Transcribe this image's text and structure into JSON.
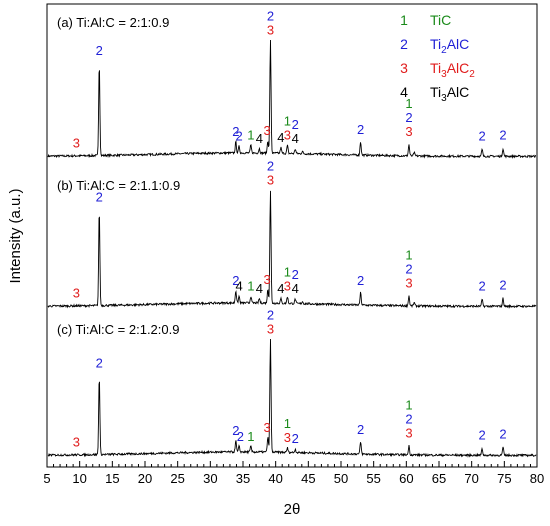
{
  "chart_data": {
    "type": "line",
    "xlabel": "2θ",
    "ylabel": "Intensity (a.u.)",
    "xlim": [
      5,
      80
    ],
    "x_ticks": [
      "5",
      "10",
      "15",
      "20",
      "25",
      "30",
      "35",
      "40",
      "45",
      "50",
      "55",
      "60",
      "65",
      "70",
      "75",
      "80"
    ],
    "colors": {
      "1": "#1a8a1a",
      "2": "#1f1fd6",
      "3": "#e01c1c",
      "4": "#000000"
    },
    "legend": [
      {
        "key": "1",
        "label": "TiC",
        "color": "#1a8a1a"
      },
      {
        "key": "2",
        "label": "Ti",
        "sub": "2",
        "rest": "AlC",
        "color": "#1f1fd6"
      },
      {
        "key": "3",
        "label": "Ti",
        "sub": "3",
        "rest": "AlC",
        "sub2": "2",
        "color": "#e01c1c"
      },
      {
        "key": "4",
        "label": "Ti",
        "sub": "3",
        "rest": "AlC",
        "color": "#000000"
      }
    ],
    "series": [
      {
        "label": "(a) Ti:Al:C = 2:1:0.9",
        "peaks": [
          {
            "x": 13.0,
            "h": 0.82
          },
          {
            "x": 33.9,
            "h": 0.1
          },
          {
            "x": 34.4,
            "h": 0.06
          },
          {
            "x": 36.2,
            "h": 0.07
          },
          {
            "x": 37.5,
            "h": 0.04
          },
          {
            "x": 38.8,
            "h": 0.11
          },
          {
            "x": 39.2,
            "h": 1.0
          },
          {
            "x": 40.8,
            "h": 0.05
          },
          {
            "x": 41.8,
            "h": 0.07
          },
          {
            "x": 43.0,
            "h": 0.04
          },
          {
            "x": 44.1,
            "h": 0.02
          },
          {
            "x": 53.0,
            "h": 0.12
          },
          {
            "x": 60.4,
            "h": 0.1
          },
          {
            "x": 61.2,
            "h": 0.03
          },
          {
            "x": 71.6,
            "h": 0.06
          },
          {
            "x": 74.8,
            "h": 0.07
          }
        ],
        "labels": [
          {
            "x": 9.5,
            "texts": [
              {
                "t": "3",
                "k": "3"
              }
            ]
          },
          {
            "x": 13.0,
            "texts": [
              {
                "t": "2",
                "k": "2"
              }
            ]
          },
          {
            "x": 33.9,
            "texts": [
              {
                "t": "2",
                "k": "2"
              }
            ]
          },
          {
            "x": 34.4,
            "texts": [
              {
                "t": "2",
                "k": "2"
              }
            ]
          },
          {
            "x": 36.2,
            "texts": [
              {
                "t": "1",
                "k": "1"
              }
            ]
          },
          {
            "x": 37.5,
            "texts": [
              {
                "t": "4",
                "k": "4"
              }
            ]
          },
          {
            "x": 38.7,
            "texts": [
              {
                "t": "3",
                "k": "3"
              }
            ]
          },
          {
            "x": 39.2,
            "texts": [
              {
                "t": "2",
                "k": "2"
              },
              {
                "t": "3",
                "k": "3"
              }
            ]
          },
          {
            "x": 40.8,
            "texts": [
              {
                "t": "4",
                "k": "4"
              }
            ]
          },
          {
            "x": 41.8,
            "texts": [
              {
                "t": "1",
                "k": "1"
              },
              {
                "t": "3",
                "k": "3"
              }
            ]
          },
          {
            "x": 43.0,
            "texts": [
              {
                "t": "2",
                "k": "2"
              },
              {
                "t": "4",
                "k": "4"
              }
            ]
          },
          {
            "x": 53.0,
            "texts": [
              {
                "t": "2",
                "k": "2"
              }
            ]
          },
          {
            "x": 60.4,
            "texts": [
              {
                "t": "1",
                "k": "1"
              },
              {
                "t": "2",
                "k": "2"
              },
              {
                "t": "3",
                "k": "3"
              }
            ]
          },
          {
            "x": 71.6,
            "texts": [
              {
                "t": "2",
                "k": "2"
              }
            ]
          },
          {
            "x": 74.8,
            "texts": [
              {
                "t": "2",
                "k": "2"
              }
            ]
          }
        ]
      },
      {
        "label": "(b) Ti:Al:C = 2:1.1:0.9",
        "peaks": [
          {
            "x": 13.0,
            "h": 0.85
          },
          {
            "x": 33.9,
            "h": 0.11
          },
          {
            "x": 34.4,
            "h": 0.06
          },
          {
            "x": 36.2,
            "h": 0.06
          },
          {
            "x": 37.5,
            "h": 0.04
          },
          {
            "x": 38.8,
            "h": 0.12
          },
          {
            "x": 39.2,
            "h": 1.0
          },
          {
            "x": 40.8,
            "h": 0.04
          },
          {
            "x": 41.8,
            "h": 0.06
          },
          {
            "x": 43.0,
            "h": 0.04
          },
          {
            "x": 44.1,
            "h": 0.02
          },
          {
            "x": 53.0,
            "h": 0.11
          },
          {
            "x": 60.4,
            "h": 0.09
          },
          {
            "x": 61.2,
            "h": 0.03
          },
          {
            "x": 71.6,
            "h": 0.06
          },
          {
            "x": 74.8,
            "h": 0.07
          }
        ],
        "labels": [
          {
            "x": 9.5,
            "texts": [
              {
                "t": "3",
                "k": "3"
              }
            ]
          },
          {
            "x": 13.0,
            "texts": [
              {
                "t": "2",
                "k": "2"
              }
            ]
          },
          {
            "x": 33.9,
            "texts": [
              {
                "t": "2",
                "k": "2"
              }
            ]
          },
          {
            "x": 34.4,
            "texts": [
              {
                "t": "4",
                "k": "4"
              }
            ]
          },
          {
            "x": 36.2,
            "texts": [
              {
                "t": "1",
                "k": "1"
              }
            ]
          },
          {
            "x": 37.5,
            "texts": [
              {
                "t": "4",
                "k": "4"
              }
            ]
          },
          {
            "x": 38.7,
            "texts": [
              {
                "t": "3",
                "k": "3"
              }
            ]
          },
          {
            "x": 39.2,
            "texts": [
              {
                "t": "2",
                "k": "2"
              },
              {
                "t": "3",
                "k": "3"
              }
            ]
          },
          {
            "x": 40.8,
            "texts": [
              {
                "t": "4",
                "k": "4"
              }
            ]
          },
          {
            "x": 41.8,
            "texts": [
              {
                "t": "1",
                "k": "1"
              },
              {
                "t": "3",
                "k": "3"
              }
            ]
          },
          {
            "x": 43.0,
            "texts": [
              {
                "t": "2",
                "k": "2"
              },
              {
                "t": "4",
                "k": "4"
              }
            ]
          },
          {
            "x": 53.0,
            "texts": [
              {
                "t": "2",
                "k": "2"
              }
            ]
          },
          {
            "x": 60.4,
            "texts": [
              {
                "t": "1",
                "k": "1"
              },
              {
                "t": "2",
                "k": "2"
              },
              {
                "t": "3",
                "k": "3"
              }
            ]
          },
          {
            "x": 71.6,
            "texts": [
              {
                "t": "2",
                "k": "2"
              }
            ]
          },
          {
            "x": 74.8,
            "texts": [
              {
                "t": "2",
                "k": "2"
              }
            ]
          }
        ]
      },
      {
        "label": "(c) Ti:Al:C = 2:1.2:0.9",
        "peaks": [
          {
            "x": 13.0,
            "h": 0.7
          },
          {
            "x": 33.9,
            "h": 0.1
          },
          {
            "x": 34.4,
            "h": 0.05
          },
          {
            "x": 36.2,
            "h": 0.05
          },
          {
            "x": 38.8,
            "h": 0.13
          },
          {
            "x": 39.2,
            "h": 1.0
          },
          {
            "x": 41.8,
            "h": 0.04
          },
          {
            "x": 43.0,
            "h": 0.03
          },
          {
            "x": 53.0,
            "h": 0.11
          },
          {
            "x": 60.4,
            "h": 0.08
          },
          {
            "x": 71.6,
            "h": 0.06
          },
          {
            "x": 74.8,
            "h": 0.07
          }
        ],
        "labels": [
          {
            "x": 9.5,
            "texts": [
              {
                "t": "3",
                "k": "3"
              }
            ]
          },
          {
            "x": 13.0,
            "texts": [
              {
                "t": "2",
                "k": "2"
              }
            ]
          },
          {
            "x": 33.9,
            "texts": [
              {
                "t": "2",
                "k": "2"
              }
            ]
          },
          {
            "x": 34.6,
            "texts": [
              {
                "t": "2",
                "k": "2"
              }
            ]
          },
          {
            "x": 36.2,
            "texts": [
              {
                "t": "1",
                "k": "1"
              }
            ]
          },
          {
            "x": 38.7,
            "texts": [
              {
                "t": "3",
                "k": "3"
              }
            ]
          },
          {
            "x": 39.2,
            "texts": [
              {
                "t": "2",
                "k": "2"
              },
              {
                "t": "3",
                "k": "3"
              }
            ]
          },
          {
            "x": 41.8,
            "texts": [
              {
                "t": "1",
                "k": "1"
              },
              {
                "t": "3",
                "k": "3"
              }
            ]
          },
          {
            "x": 43.0,
            "texts": [
              {
                "t": "2",
                "k": "2"
              }
            ]
          },
          {
            "x": 53.0,
            "texts": [
              {
                "t": "2",
                "k": "2"
              }
            ]
          },
          {
            "x": 60.4,
            "texts": [
              {
                "t": "1",
                "k": "1"
              },
              {
                "t": "2",
                "k": "2"
              },
              {
                "t": "3",
                "k": "3"
              }
            ]
          },
          {
            "x": 71.6,
            "texts": [
              {
                "t": "2",
                "k": "2"
              }
            ]
          },
          {
            "x": 74.8,
            "texts": [
              {
                "t": "2",
                "k": "2"
              }
            ]
          }
        ]
      }
    ]
  }
}
